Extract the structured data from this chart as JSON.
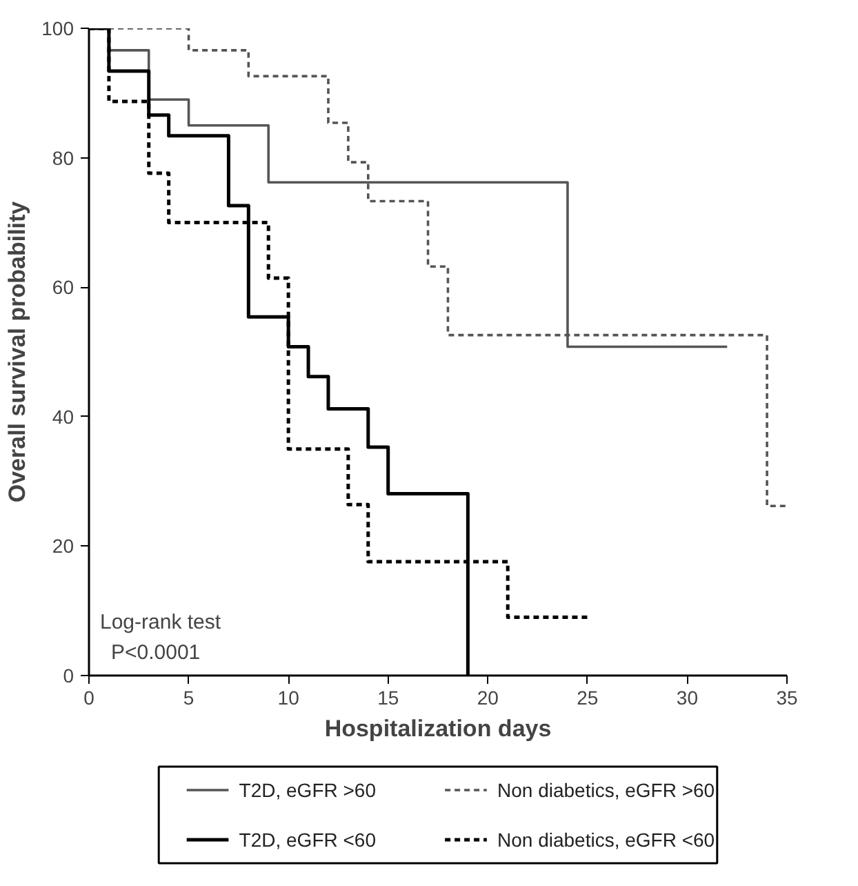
{
  "chart_data": {
    "type": "step",
    "xlabel": "Hospitalization days",
    "ylabel": "Overall survival probability",
    "xlim": [
      0,
      35
    ],
    "ylim": [
      0,
      100
    ],
    "xticks": [
      0,
      5,
      10,
      15,
      20,
      25,
      30,
      35
    ],
    "yticks": [
      0,
      20,
      40,
      60,
      80,
      100
    ],
    "grid": false,
    "legend": "bottom",
    "marker": "none",
    "annotations": [
      "Log-rank test",
      "P<0.0001"
    ],
    "series": [
      {
        "name": "T2D, eGFR >60",
        "color": "#555555",
        "line_style": "solid",
        "x": [
          0,
          1,
          3,
          5,
          9,
          24,
          32
        ],
        "values": [
          100,
          96.6,
          89.0,
          85.0,
          76.2,
          50.8,
          50.8
        ]
      },
      {
        "name": "T2D, eGFR <60",
        "color": "#000000",
        "line_style": "solid",
        "x": [
          0,
          1,
          3,
          4,
          7,
          8,
          10,
          11,
          12,
          14,
          15,
          19
        ],
        "values": [
          100,
          93.4,
          86.6,
          83.4,
          72.6,
          55.4,
          50.8,
          46.2,
          41.2,
          35.3,
          28.1,
          0
        ]
      },
      {
        "name": "Non diabetics, eGFR >60",
        "color": "#555555",
        "line_style": "dashed",
        "x": [
          0,
          5,
          8,
          12,
          13,
          14,
          17,
          18,
          34,
          35
        ],
        "values": [
          100,
          96.6,
          92.6,
          85.4,
          79.3,
          73.3,
          63.2,
          52.6,
          26.2,
          26.2
        ]
      },
      {
        "name": "Non diabetics, eGFR <60",
        "color": "#000000",
        "line_style": "dashed",
        "x": [
          0,
          1,
          3,
          4,
          9,
          10,
          13,
          14,
          21,
          25
        ],
        "values": [
          100,
          88.7,
          77.6,
          70.0,
          61.4,
          35.0,
          26.4,
          17.6,
          9.0,
          9.0
        ]
      }
    ]
  }
}
